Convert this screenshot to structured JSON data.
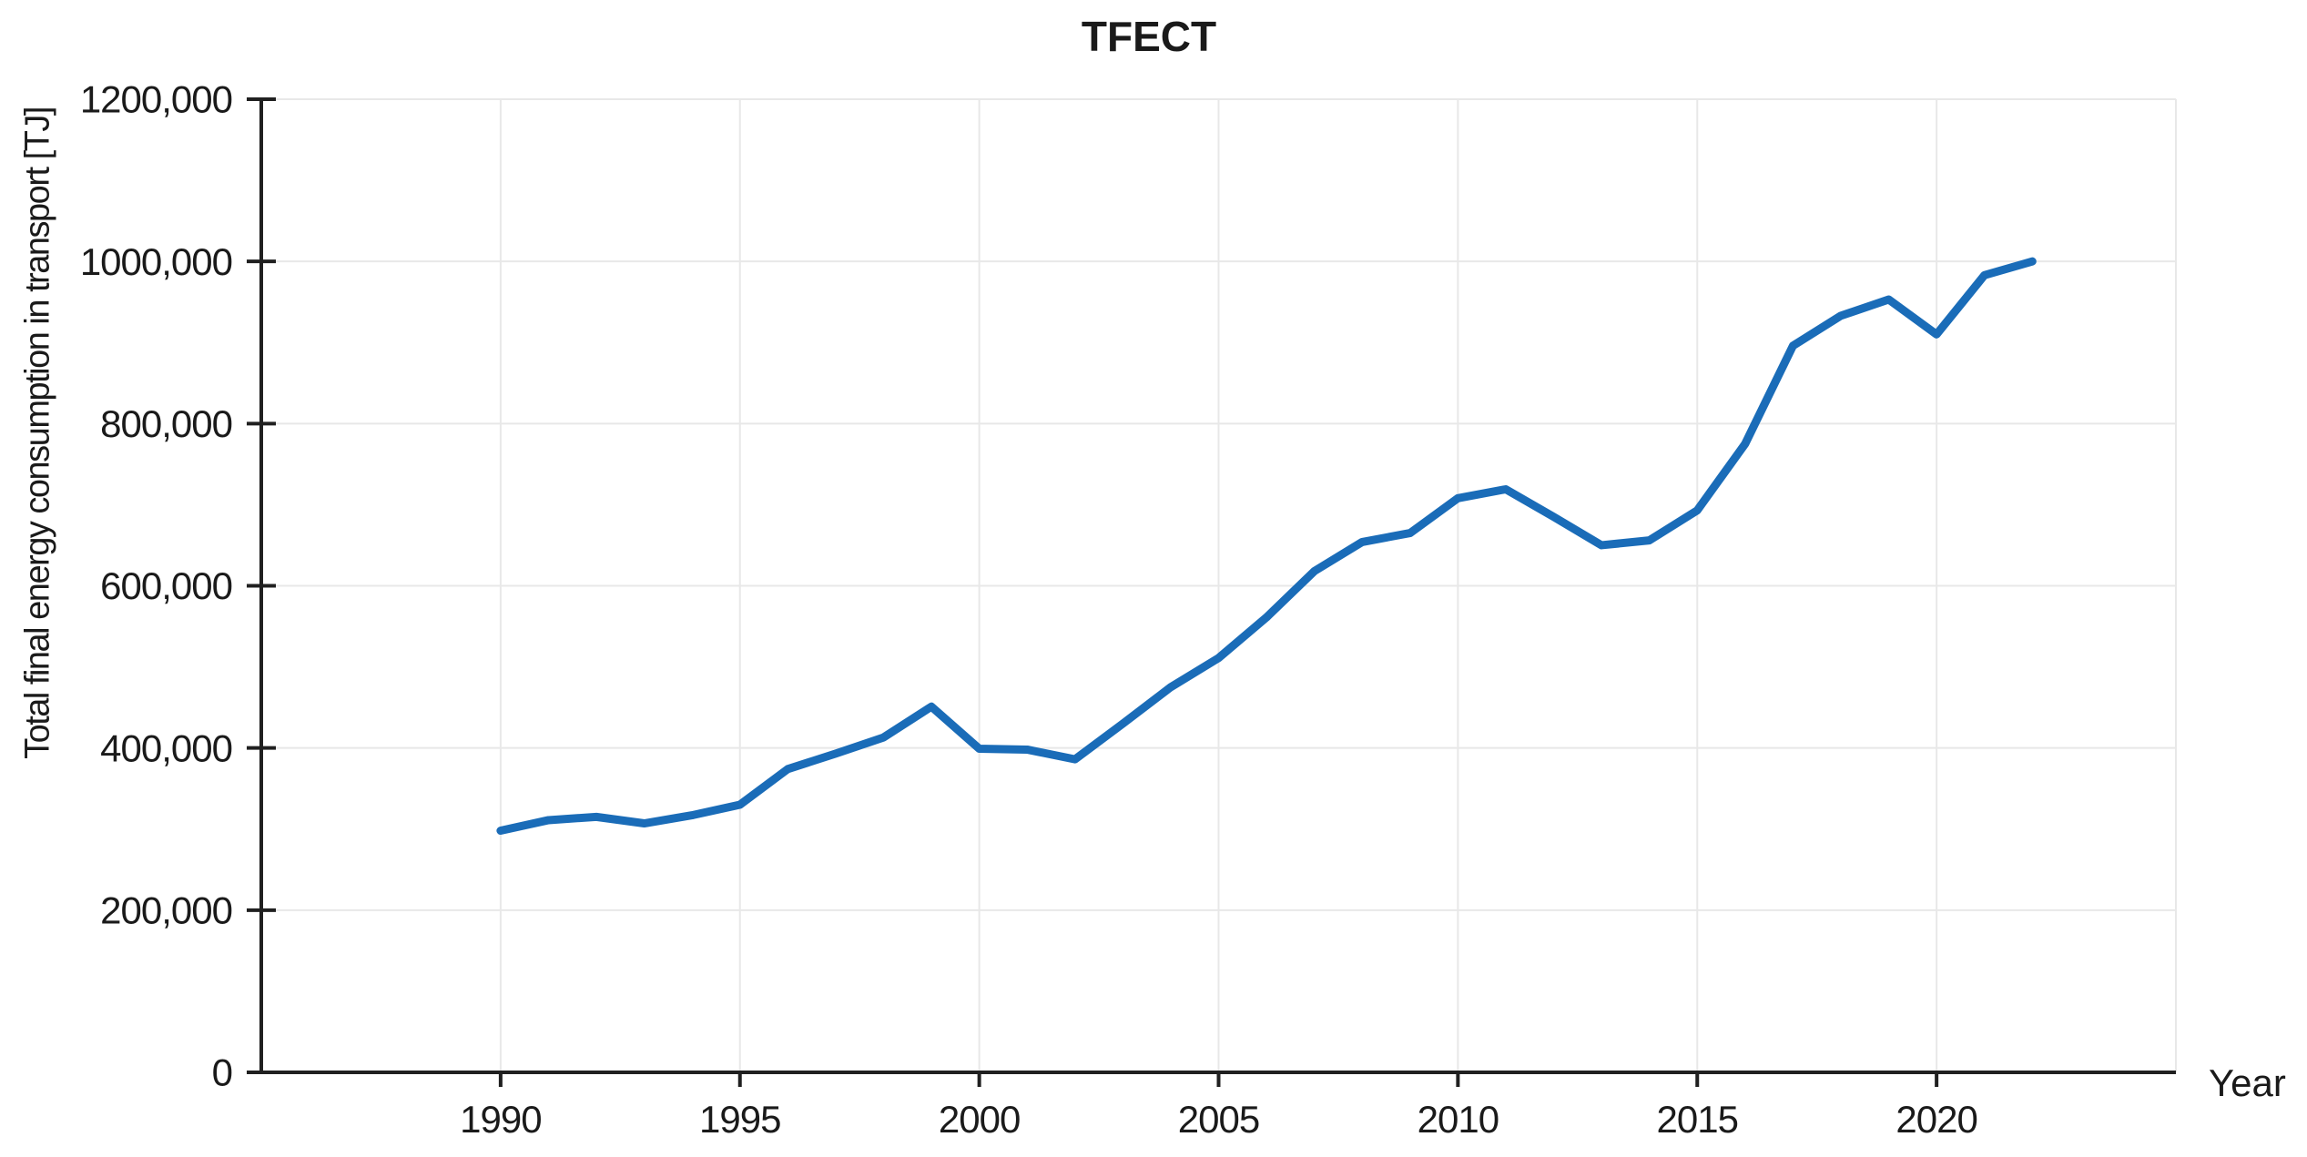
{
  "chart_data": {
    "type": "line",
    "title": "TFECT",
    "xlabel": "Year",
    "ylabel": "Total final energy consumption in transport [TJ]",
    "x": [
      1990,
      1991,
      1992,
      1993,
      1994,
      1995,
      1996,
      1997,
      1998,
      1999,
      2000,
      2001,
      2002,
      2003,
      2004,
      2005,
      2006,
      2007,
      2008,
      2009,
      2010,
      2011,
      2012,
      2013,
      2014,
      2015,
      2016,
      2017,
      2018,
      2019,
      2020,
      2021,
      2022
    ],
    "values": [
      298000,
      311000,
      315000,
      307000,
      317000,
      330000,
      374000,
      393000,
      413000,
      451000,
      399000,
      398000,
      386000,
      430000,
      475000,
      511000,
      561000,
      618000,
      654000,
      665000,
      708000,
      719000,
      685000,
      650000,
      656000,
      693000,
      775000,
      896000,
      933000,
      953000,
      910000,
      983000,
      1000000
    ],
    "xlim": [
      1985,
      2025
    ],
    "ylim": [
      0,
      1200000
    ],
    "grid": true,
    "legend": "none",
    "x_axis": {
      "tick_values": [
        1990,
        1995,
        2000,
        2005,
        2010,
        2015,
        2020
      ],
      "tick_labels": [
        "1990",
        "1995",
        "2000",
        "2005",
        "2010",
        "2015",
        "2020"
      ],
      "grid_values": [
        1990,
        1995,
        2000,
        2005,
        2010,
        2015,
        2020,
        2025
      ]
    },
    "y_axis": {
      "tick_values": [
        0,
        200000,
        400000,
        600000,
        800000,
        1000000,
        1200000
      ],
      "tick_labels": [
        "0",
        "200,000",
        "400,000",
        "600,000",
        "800,000",
        "1000,000",
        "1200,000"
      ],
      "grid_values": [
        200000,
        400000,
        600000,
        800000,
        1000000,
        1200000
      ]
    },
    "colors": {
      "line": "#1a6cb8",
      "grid": "#e8e8e8",
      "axis": "#202020",
      "text": "#1a1a1a",
      "background": "#ffffff"
    }
  }
}
